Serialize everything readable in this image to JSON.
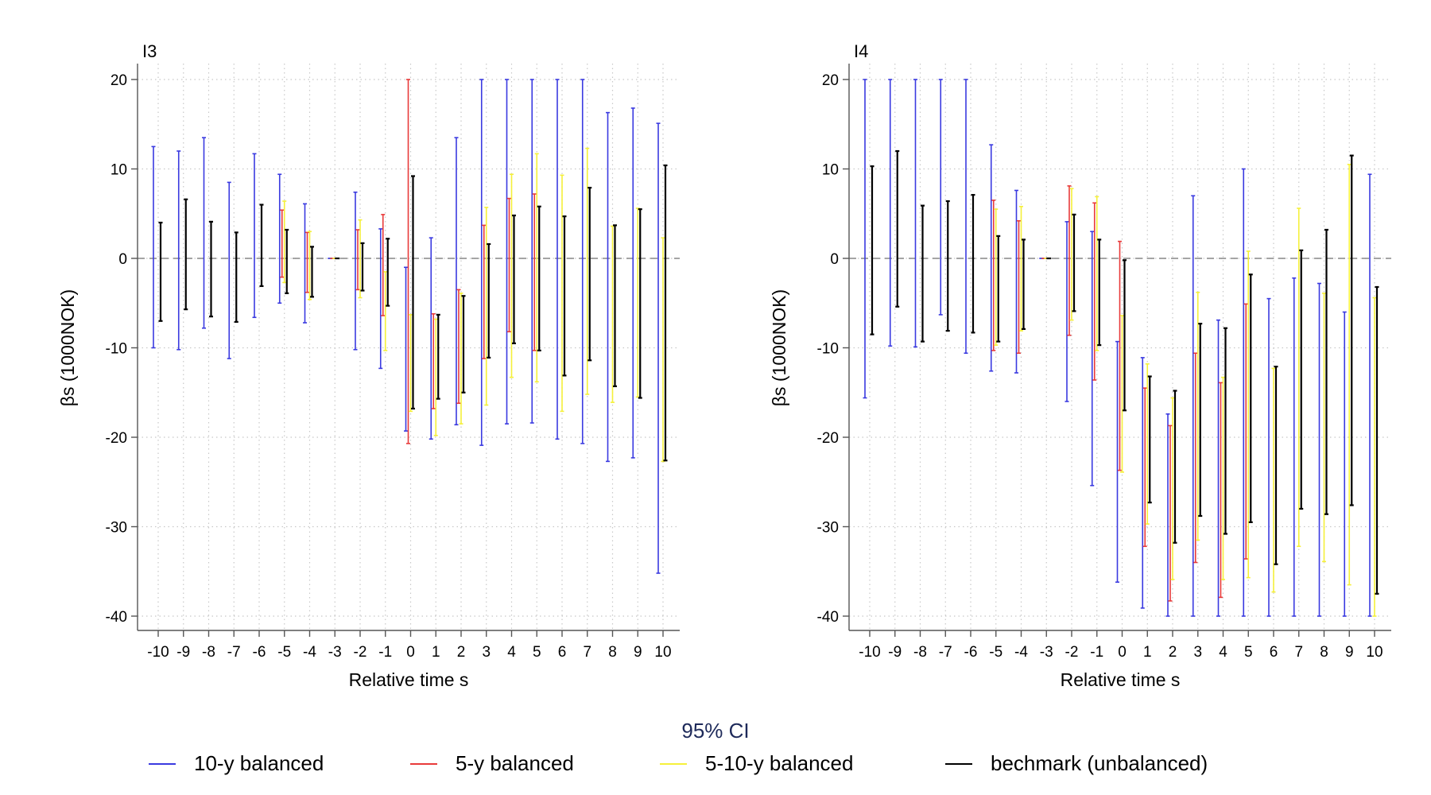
{
  "legend": {
    "title": "95% CI",
    "items": [
      {
        "label": "10-y balanced",
        "color": "#3a3ae0"
      },
      {
        "label": "5-y balanced",
        "color": "#e83a3a"
      },
      {
        "label": "5-10-y balanced",
        "color": "#f5f03a"
      },
      {
        "label": "bechmark (unbalanced)",
        "color": "#000000"
      }
    ]
  },
  "chart_data": [
    {
      "type": "errorbar",
      "title": "I3",
      "xlabel": "Relative time s",
      "ylabel": "βs (1000NOK)",
      "ylim": [
        -40,
        20
      ],
      "yticks": [
        20,
        10,
        0,
        -10,
        -20,
        -30,
        -40
      ],
      "categories": [
        -10,
        -9,
        -8,
        -7,
        -6,
        -5,
        -4,
        -3,
        -2,
        -1,
        0,
        1,
        2,
        3,
        4,
        5,
        6,
        7,
        8,
        9,
        10
      ],
      "grid": true,
      "reference_line": 0,
      "series": [
        {
          "name": "10-y balanced",
          "color": "#3a3ae0",
          "intervals": [
            [
              -10,
              12.5
            ],
            [
              -10.2,
              12
            ],
            [
              -7.8,
              13.5
            ],
            [
              -11.2,
              8.5
            ],
            [
              -6.6,
              11.7
            ],
            [
              -5,
              9.4
            ],
            [
              -7.2,
              6.1
            ],
            [
              0,
              0
            ],
            [
              -10.2,
              7.4
            ],
            [
              -12.3,
              3.3
            ],
            [
              -19.3,
              -1
            ],
            [
              -20.2,
              2.3
            ],
            [
              -18.6,
              13.5
            ],
            [
              -20.9,
              20
            ],
            [
              -18.5,
              20
            ],
            [
              -18.4,
              20
            ],
            [
              -20.2,
              20
            ],
            [
              -20.7,
              20
            ],
            [
              -22.7,
              16.3
            ],
            [
              -22.3,
              16.8
            ],
            [
              -35.2,
              15.1
            ]
          ]
        },
        {
          "name": "5-y balanced",
          "color": "#e83a3a",
          "intervals": [
            [
              null,
              null
            ],
            [
              null,
              null
            ],
            [
              null,
              null
            ],
            [
              null,
              null
            ],
            [
              null,
              null
            ],
            [
              -2.1,
              5.4
            ],
            [
              -3.8,
              2.9
            ],
            [
              0,
              0
            ],
            [
              -3.5,
              3.2
            ],
            [
              -6.4,
              4.9
            ],
            [
              -20.7,
              20
            ],
            [
              -16.8,
              -6.2
            ],
            [
              -16.2,
              -3.5
            ],
            [
              -11.2,
              3.7
            ],
            [
              -8.2,
              6.7
            ],
            [
              -10.3,
              7.2
            ],
            [
              null,
              null
            ],
            [
              null,
              null
            ],
            [
              null,
              null
            ],
            [
              null,
              null
            ],
            [
              null,
              null
            ]
          ]
        },
        {
          "name": "5-10-y balanced",
          "color": "#f5f03a",
          "intervals": [
            [
              null,
              null
            ],
            [
              null,
              null
            ],
            [
              null,
              null
            ],
            [
              null,
              null
            ],
            [
              null,
              null
            ],
            [
              -2.7,
              6.4
            ],
            [
              -4.6,
              3
            ],
            [
              0,
              0
            ],
            [
              -4.4,
              4.3
            ],
            [
              -10.3,
              -1.5
            ],
            [
              -17.1,
              -6.3
            ],
            [
              -19.8,
              -6.8
            ],
            [
              -18.5,
              -3.9
            ],
            [
              -16.4,
              5.7
            ],
            [
              -13.3,
              9.4
            ],
            [
              -13.8,
              11.7
            ],
            [
              -17.1,
              9.3
            ],
            [
              -15.2,
              12.3
            ],
            [
              -16.1,
              3.6
            ],
            [
              -15.5,
              5.6
            ],
            [
              -22.7,
              2.3
            ]
          ]
        },
        {
          "name": "bechmark (unbalanced)",
          "color": "#000000",
          "intervals": [
            [
              -7,
              4
            ],
            [
              -5.7,
              6.6
            ],
            [
              -6.5,
              4.1
            ],
            [
              -7.1,
              2.9
            ],
            [
              -3.1,
              6
            ],
            [
              -3.9,
              3.2
            ],
            [
              -4.3,
              1.3
            ],
            [
              0,
              0
            ],
            [
              -3.6,
              1.7
            ],
            [
              -5.3,
              2.2
            ],
            [
              -16.8,
              9.2
            ],
            [
              -15.7,
              -6.3
            ],
            [
              -15,
              -4.2
            ],
            [
              -11.1,
              1.6
            ],
            [
              -9.5,
              4.8
            ],
            [
              -10.3,
              5.8
            ],
            [
              -13.1,
              4.7
            ],
            [
              -11.4,
              7.9
            ],
            [
              -14.3,
              3.7
            ],
            [
              -15.6,
              5.5
            ],
            [
              -22.6,
              10.4
            ]
          ]
        }
      ]
    },
    {
      "type": "errorbar",
      "title": "I4",
      "xlabel": "Relative time s",
      "ylabel": "βs (1000NOK)",
      "ylim": [
        -40,
        20
      ],
      "yticks": [
        20,
        10,
        0,
        -10,
        -20,
        -30,
        -40
      ],
      "categories": [
        -10,
        -9,
        -8,
        -7,
        -6,
        -5,
        -4,
        -3,
        -2,
        -1,
        0,
        1,
        2,
        3,
        4,
        5,
        6,
        7,
        8,
        9,
        10
      ],
      "grid": true,
      "reference_line": 0,
      "series": [
        {
          "name": "10-y balanced",
          "color": "#3a3ae0",
          "intervals": [
            [
              -15.6,
              20
            ],
            [
              -9.8,
              20
            ],
            [
              -9.9,
              20
            ],
            [
              -6.3,
              20
            ],
            [
              -10.6,
              20
            ],
            [
              -12.6,
              12.7
            ],
            [
              -12.8,
              7.6
            ],
            [
              0,
              0
            ],
            [
              -16,
              4.1
            ],
            [
              -25.4,
              3
            ],
            [
              -36.2,
              -9.3
            ],
            [
              -39.1,
              -11.1
            ],
            [
              -40,
              -17.4
            ],
            [
              -40,
              7
            ],
            [
              -40,
              -6.9
            ],
            [
              -40,
              10
            ],
            [
              -40,
              -4.5
            ],
            [
              -40,
              -2.2
            ],
            [
              -40,
              -2.8
            ],
            [
              -40,
              -6
            ],
            [
              -40,
              9.4
            ]
          ]
        },
        {
          "name": "5-y balanced",
          "color": "#e83a3a",
          "intervals": [
            [
              null,
              null
            ],
            [
              null,
              null
            ],
            [
              null,
              null
            ],
            [
              null,
              null
            ],
            [
              null,
              null
            ],
            [
              -10.3,
              6.5
            ],
            [
              -10.6,
              4.2
            ],
            [
              0,
              0
            ],
            [
              -8.6,
              8.1
            ],
            [
              -13.6,
              6.2
            ],
            [
              -23.7,
              1.9
            ],
            [
              -32.2,
              -14.5
            ],
            [
              -38.3,
              -18.7
            ],
            [
              -34,
              -10.6
            ],
            [
              -37.9,
              -13.9
            ],
            [
              -33.6,
              -5.1
            ],
            [
              null,
              null
            ],
            [
              null,
              null
            ],
            [
              null,
              null
            ],
            [
              null,
              null
            ],
            [
              null,
              null
            ]
          ]
        },
        {
          "name": "5-10-y balanced",
          "color": "#f5f03a",
          "intervals": [
            [
              null,
              null
            ],
            [
              null,
              null
            ],
            [
              null,
              null
            ],
            [
              null,
              null
            ],
            [
              null,
              null
            ],
            [
              -9.7,
              5.5
            ],
            [
              -8.1,
              5.8
            ],
            [
              0,
              0
            ],
            [
              -6.9,
              7.8
            ],
            [
              -10.3,
              6.9
            ],
            [
              -23.9,
              -6.4
            ],
            [
              -29.7,
              -11.8
            ],
            [
              -35.9,
              -15.6
            ],
            [
              -31.5,
              -3.8
            ],
            [
              -35.9,
              -13.3
            ],
            [
              -35.7,
              0.8
            ],
            [
              -37.3,
              -12.3
            ],
            [
              -32.2,
              5.6
            ],
            [
              -33.9,
              -3.9
            ],
            [
              -36.5,
              10.5
            ],
            [
              -40,
              -4.4
            ]
          ]
        },
        {
          "name": "bechmark (unbalanced)",
          "color": "#000000",
          "intervals": [
            [
              -8.5,
              10.3
            ],
            [
              -5.4,
              12
            ],
            [
              -9.3,
              5.9
            ],
            [
              -8.1,
              6.4
            ],
            [
              -8.3,
              7.1
            ],
            [
              -9.3,
              2.5
            ],
            [
              -7.9,
              2.1
            ],
            [
              0,
              0
            ],
            [
              -5.9,
              4.9
            ],
            [
              -9.7,
              2.1
            ],
            [
              -17,
              -0.2
            ],
            [
              -27.3,
              -13.2
            ],
            [
              -31.8,
              -14.8
            ],
            [
              -28.8,
              -7.3
            ],
            [
              -30.8,
              -7.8
            ],
            [
              -29.5,
              -1.8
            ],
            [
              -34.2,
              -12.1
            ],
            [
              -28,
              0.9
            ],
            [
              -28.6,
              3.2
            ],
            [
              -27.6,
              11.5
            ],
            [
              -37.5,
              -3.2
            ]
          ]
        }
      ]
    }
  ]
}
